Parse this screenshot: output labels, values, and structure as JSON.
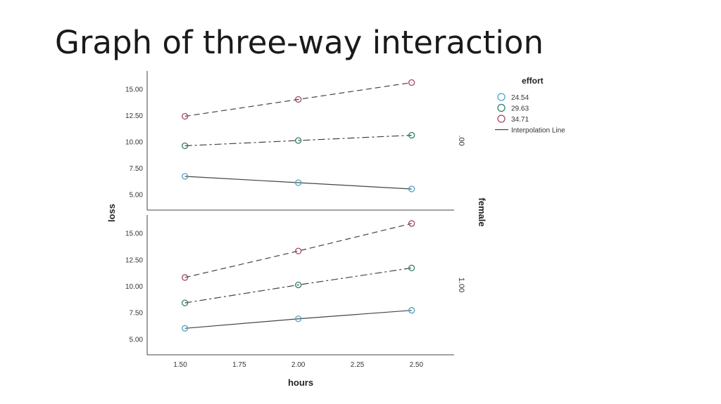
{
  "slide": {
    "title": "Graph of three-way interaction"
  },
  "chart_data": {
    "type": "line",
    "xlabel": "hours",
    "ylabel": "loss",
    "facet_label": "female",
    "x": [
      1.52,
      2.0,
      2.48
    ],
    "x_ticks": [
      "1.50",
      "1.75",
      "2.00",
      "2.25",
      "2.50"
    ],
    "xlim": [
      1.36,
      2.66
    ],
    "y_ticks": [
      "5.00",
      "7.50",
      "10.00",
      "12.50",
      "15.00"
    ],
    "ylim": [
      3.5,
      16.7
    ],
    "legend": {
      "title": "effort",
      "position": "top-right",
      "entries": [
        "24.54",
        "29.63",
        "34.71",
        "Interpolation Line"
      ]
    },
    "panels": [
      {
        "label": ".00",
        "series": [
          {
            "name": "24.54",
            "color": "#4aa3c8",
            "values": [
              6.7,
              6.1,
              5.5
            ]
          },
          {
            "name": "29.63",
            "color": "#2e7d6b",
            "values": [
              9.6,
              10.1,
              10.6
            ]
          },
          {
            "name": "34.71",
            "color": "#a0476e",
            "values": [
              12.4,
              14.0,
              15.6
            ]
          }
        ]
      },
      {
        "label": "1.00",
        "series": [
          {
            "name": "24.54",
            "color": "#4aa3c8",
            "values": [
              6.0,
              6.9,
              7.7
            ]
          },
          {
            "name": "29.63",
            "color": "#2e7d6b",
            "values": [
              8.4,
              10.1,
              11.7
            ]
          },
          {
            "name": "34.71",
            "color": "#a0476e",
            "values": [
              10.8,
              13.3,
              15.9
            ]
          }
        ]
      }
    ]
  }
}
